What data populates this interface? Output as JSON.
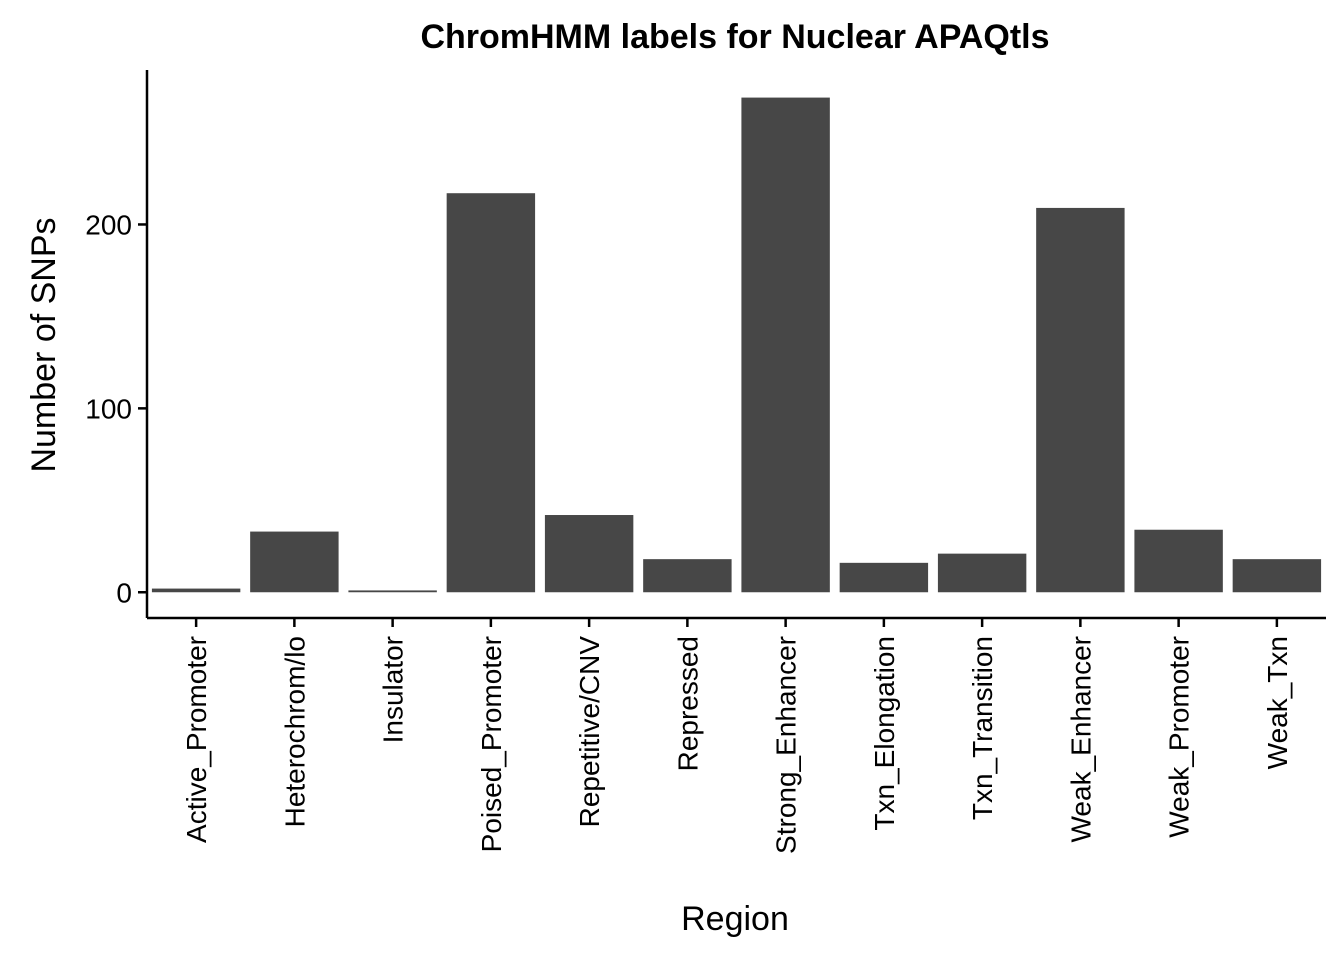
{
  "chart_data": {
    "type": "bar",
    "title": "ChromHMM labels for Nuclear APAQtls",
    "xlabel": "Region",
    "ylabel": "Number of SNPs",
    "categories": [
      "Active_Promoter",
      "Heterochrom/lo",
      "Insulator",
      "Poised_Promoter",
      "Repetitive/CNV",
      "Repressed",
      "Strong_Enhancer",
      "Txn_Elongation",
      "Txn_Transition",
      "Weak_Enhancer",
      "Weak_Promoter",
      "Weak_Txn"
    ],
    "values": [
      2,
      33,
      1,
      217,
      42,
      18,
      269,
      16,
      21,
      209,
      34,
      18
    ],
    "ylim": [
      -14,
      284
    ],
    "yticks": [
      0,
      100,
      200
    ],
    "bar_color": "#474747",
    "grid": false,
    "legend": "none"
  }
}
